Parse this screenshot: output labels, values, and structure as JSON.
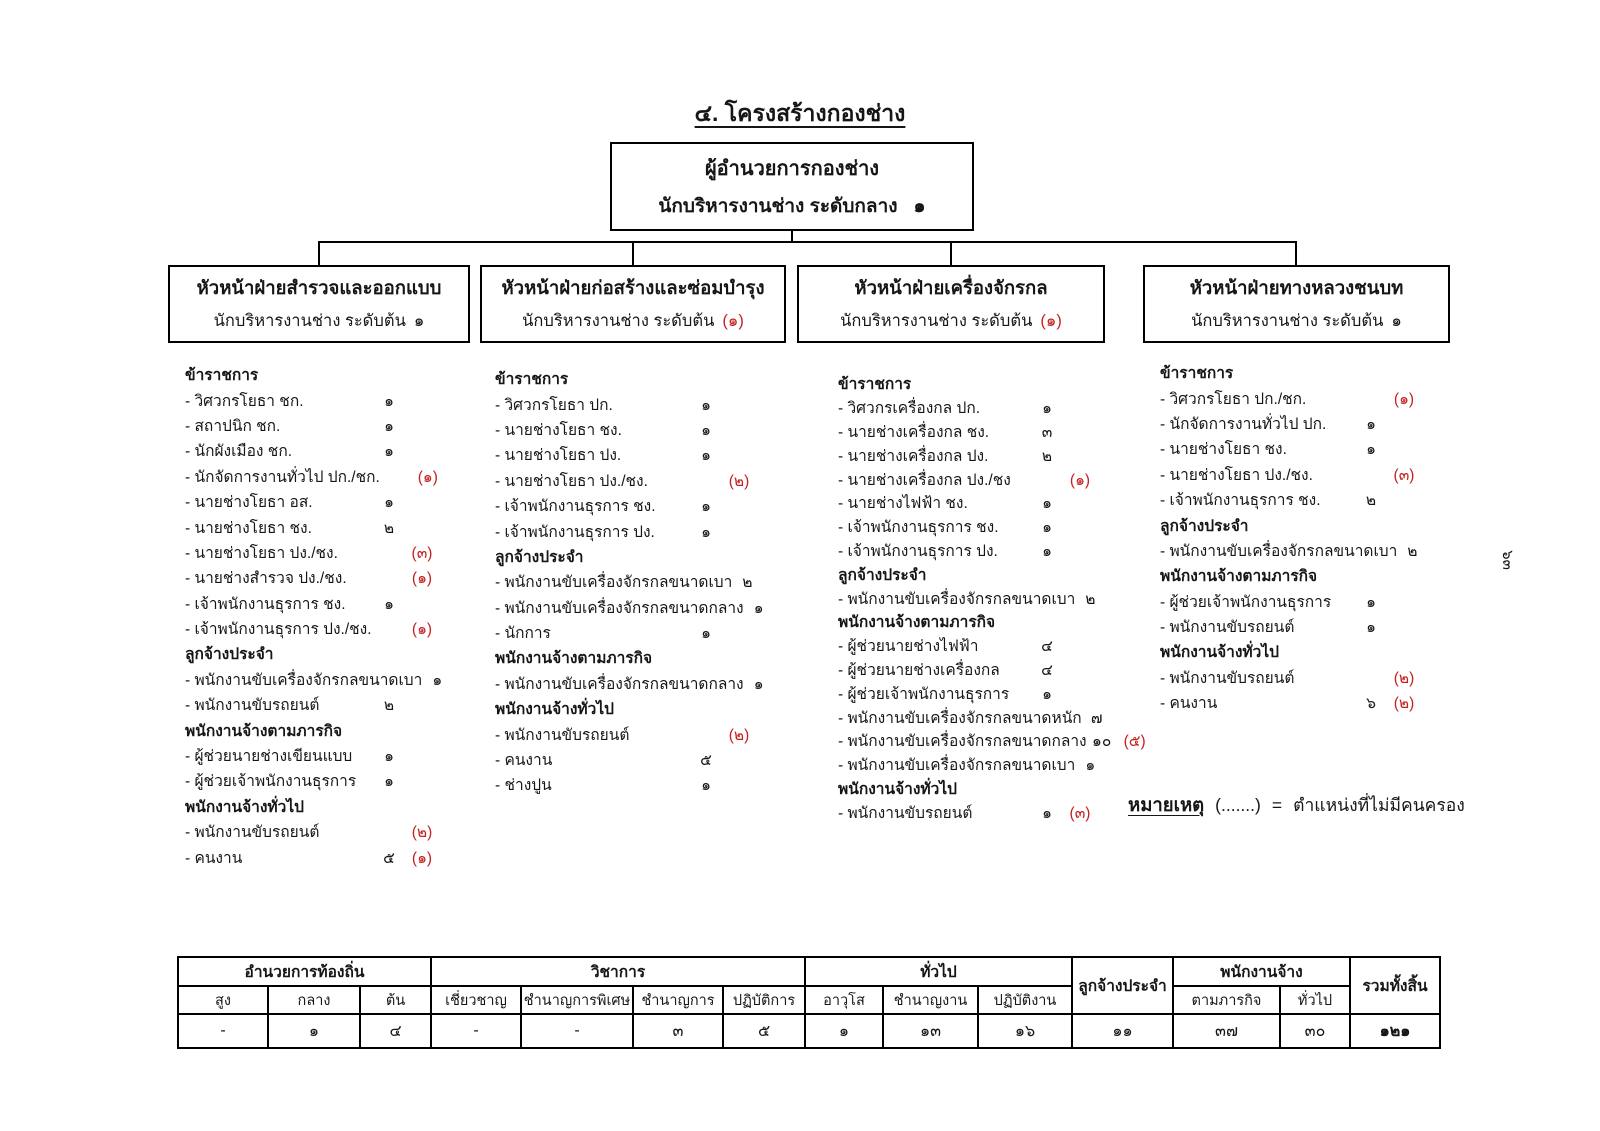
{
  "page": {
    "title": "๔. โครงสร้างกองช่าง",
    "side_page_number": "๖๓"
  },
  "colors": {
    "vacant_red": "#c32222",
    "ink": "#161616"
  },
  "director_box": {
    "title": "ผู้อำนวยการกองช่าง",
    "position": "นักบริหารงานช่าง ระดับกลาง",
    "count": "๑"
  },
  "departments": [
    {
      "title": "หัวหน้าฝ่ายสำรวจและออกแบบ",
      "position": "นักบริหารงานช่าง ระดับต้น",
      "count": "๑",
      "count_vacant": null,
      "sections": [
        {
          "header": "ข้าราชการ",
          "items": [
            {
              "label": "- วิศวกรโยธา ชก.",
              "count": "๑",
              "count_vacant": null
            },
            {
              "label": "- สถาปนิก ชก.",
              "count": "๑",
              "count_vacant": null
            },
            {
              "label": "- นักผังเมือง ชก.",
              "count": "๑",
              "count_vacant": null
            },
            {
              "label": "- นักจัดการงานทั่วไป ปก./ชก.",
              "count": null,
              "count_vacant": "(๑)"
            },
            {
              "label": "- นายช่างโยธา อส.",
              "count": "๑",
              "count_vacant": null
            },
            {
              "label": "- นายช่างโยธา ชง.",
              "count": "๒",
              "count_vacant": null
            },
            {
              "label": "- นายช่างโยธา ปง./ชง.",
              "count": null,
              "count_vacant": "(๓)"
            },
            {
              "label": "- นายช่างสำรวจ ปง./ชง.",
              "count": null,
              "count_vacant": "(๑)"
            },
            {
              "label": "- เจ้าพนักงานธุรการ ชง.",
              "count": "๑",
              "count_vacant": null
            },
            {
              "label": "- เจ้าพนักงานธุรการ ปง./ชง.",
              "count": null,
              "count_vacant": "(๑)"
            }
          ]
        },
        {
          "header": "ลูกจ้างประจำ",
          "items": [
            {
              "label": "- พนักงานขับเครื่องจักรกลขนาดเบา",
              "count": "๑",
              "count_vacant": null
            },
            {
              "label": "- พนักงานขับรถยนต์",
              "count": "๒",
              "count_vacant": null
            }
          ]
        },
        {
          "header": "พนักงานจ้างตามภารกิจ",
          "items": [
            {
              "label": "- ผู้ช่วยนายช่างเขียนแบบ",
              "count": "๑",
              "count_vacant": null
            },
            {
              "label": "- ผู้ช่วยเจ้าพนักงานธุรการ",
              "count": "๑",
              "count_vacant": null
            }
          ]
        },
        {
          "header": "พนักงานจ้างทั่วไป",
          "items": [
            {
              "label": "- พนักงานขับรถยนต์",
              "count": null,
              "count_vacant": "(๒)"
            },
            {
              "label": "- คนงาน",
              "count": "๕",
              "count_vacant": "(๑)"
            }
          ]
        }
      ]
    },
    {
      "title": "หัวหน้าฝ่ายก่อสร้างและซ่อมบำรุง",
      "position": "นักบริหารงานช่าง ระดับต้น",
      "count": null,
      "count_vacant": "(๑)",
      "sections": [
        {
          "header": "ข้าราชการ",
          "items": [
            {
              "label": "- วิศวกรโยธา ปก.",
              "count": "๑",
              "count_vacant": null
            },
            {
              "label": "- นายช่างโยธา ชง.",
              "count": "๑",
              "count_vacant": null
            },
            {
              "label": "- นายช่างโยธา ปง.",
              "count": "๑",
              "count_vacant": null
            },
            {
              "label": "- นายช่างโยธา ปง./ชง.",
              "count": null,
              "count_vacant": "(๒)"
            },
            {
              "label": "- เจ้าพนักงานธุรการ ชง.",
              "count": "๑",
              "count_vacant": null
            },
            {
              "label": "- เจ้าพนักงานธุรการ ปง.",
              "count": "๑",
              "count_vacant": null
            }
          ]
        },
        {
          "header": "ลูกจ้างประจำ",
          "items": [
            {
              "label": "- พนักงานขับเครื่องจักรกลขนาดเบา",
              "count": "๒",
              "count_vacant": null
            },
            {
              "label": "- พนักงานขับเครื่องจักรกลขนาดกลาง",
              "count": "๑",
              "count_vacant": null
            },
            {
              "label": "- นักการ",
              "count": "๑",
              "count_vacant": null
            }
          ]
        },
        {
          "header": "พนักงานจ้างตามภารกิจ",
          "items": [
            {
              "label": "- พนักงานขับเครื่องจักรกลขนาดกลาง",
              "count": "๑",
              "count_vacant": null
            }
          ]
        },
        {
          "header": "พนักงานจ้างทั่วไป",
          "items": [
            {
              "label": "- พนักงานขับรถยนต์",
              "count": null,
              "count_vacant": "(๒)"
            },
            {
              "label": "- คนงาน",
              "count": "๕",
              "count_vacant": null
            },
            {
              "label": "- ช่างปูน",
              "count": "๑",
              "count_vacant": null
            }
          ]
        }
      ]
    },
    {
      "title": "หัวหน้าฝ่ายเครื่องจักรกล",
      "position": "นักบริหารงานช่าง ระดับต้น",
      "count": null,
      "count_vacant": "(๑)",
      "sections": [
        {
          "header": "ข้าราชการ",
          "items": [
            {
              "label": "- วิศวกรเครื่องกล ปก.",
              "count": "๑",
              "count_vacant": null
            },
            {
              "label": "- นายช่างเครื่องกล ชง.",
              "count": "๓",
              "count_vacant": null
            },
            {
              "label": "- นายช่างเครื่องกล ปง.",
              "count": "๒",
              "count_vacant": null
            },
            {
              "label": "- นายช่างเครื่องกล ปง./ชง",
              "count": null,
              "count_vacant": "(๑)"
            },
            {
              "label": "- นายช่างไฟฟ้า ชง.",
              "count": "๑",
              "count_vacant": null
            },
            {
              "label": "- เจ้าพนักงานธุรการ ชง.",
              "count": "๑",
              "count_vacant": null
            },
            {
              "label": "- เจ้าพนักงานธุรการ ปง.",
              "count": "๑",
              "count_vacant": null
            }
          ]
        },
        {
          "header": "ลูกจ้างประจำ",
          "items": [
            {
              "label": "- พนักงานขับเครื่องจักรกลขนาดเบา",
              "count": "๒",
              "count_vacant": null
            }
          ]
        },
        {
          "header": "พนักงานจ้างตามภารกิจ",
          "items": [
            {
              "label": "- ผู้ช่วยนายช่างไฟฟ้า",
              "count": "๔",
              "count_vacant": null
            },
            {
              "label": "- ผู้ช่วยนายช่างเครื่องกล",
              "count": "๔",
              "count_vacant": null
            },
            {
              "label": "- ผู้ช่วยเจ้าพนักงานธุรการ",
              "count": "๑",
              "count_vacant": null
            },
            {
              "label": "- พนักงานขับเครื่องจักรกลขนาดหนัก",
              "count": "๗",
              "count_vacant": null
            },
            {
              "label": "- พนักงานขับเครื่องจักรกลขนาดกลาง",
              "count": "๑๐",
              "count_vacant": "(๕)"
            },
            {
              "label": "- พนักงานขับเครื่องจักรกลขนาดเบา",
              "count": "๑",
              "count_vacant": null
            }
          ]
        },
        {
          "header": "พนักงานจ้างทั่วไป",
          "items": [
            {
              "label": "- พนักงานขับรถยนต์",
              "count": "๑",
              "count_vacant": "(๓)"
            }
          ]
        }
      ]
    },
    {
      "title": "หัวหน้าฝ่ายทางหลวงชนบท",
      "position": "นักบริหารงานช่าง ระดับต้น",
      "count": "๑",
      "count_vacant": null,
      "sections": [
        {
          "header": "ข้าราชการ",
          "items": [
            {
              "label": "- วิศวกรโยธา ปก./ชก.",
              "count": null,
              "count_vacant": "(๑)"
            },
            {
              "label": "- นักจัดการงานทั่วไป ปก.",
              "count": "๑",
              "count_vacant": null
            },
            {
              "label": "- นายช่างโยธา ชง.",
              "count": "๑",
              "count_vacant": null
            },
            {
              "label": "- นายช่างโยธา ปง./ชง.",
              "count": null,
              "count_vacant": "(๓)"
            },
            {
              "label": "- เจ้าพนักงานธุรการ ชง.",
              "count": "๒",
              "count_vacant": null
            }
          ]
        },
        {
          "header": "ลูกจ้างประจำ",
          "items": [
            {
              "label": "- พนักงานขับเครื่องจักรกลขนาดเบา",
              "count": "๒",
              "count_vacant": null
            }
          ]
        },
        {
          "header": "พนักงานจ้างตามภารกิจ",
          "items": [
            {
              "label": "- ผู้ช่วยเจ้าพนักงานธุรการ",
              "count": "๑",
              "count_vacant": null
            },
            {
              "label": "- พนักงานขับรถยนต์",
              "count": "๑",
              "count_vacant": null
            }
          ]
        },
        {
          "header": "พนักงานจ้างทั่วไป",
          "items": [
            {
              "label": "- พนักงานขับรถยนต์",
              "count": null,
              "count_vacant": "(๒)"
            },
            {
              "label": "- คนงาน",
              "count": "๖",
              "count_vacant": "(๒)"
            }
          ]
        }
      ]
    }
  ],
  "note": {
    "keyword": "หมายเหตุ",
    "symbol": "(.......)",
    "equals": "=",
    "text": "ตำแหน่งที่ไม่มีคนครอง"
  },
  "summary_table": {
    "groups": [
      {
        "label": "อำนวยการท้องถิ่น",
        "columns": [
          "สูง",
          "กลาง",
          "ต้น"
        ]
      },
      {
        "label": "วิชาการ",
        "columns": [
          "เชี่ยวชาญ",
          "ชำนาญการพิเศษ",
          "ชำนาญการ",
          "ปฏิบัติการ"
        ]
      },
      {
        "label": "ทั่วไป",
        "columns": [
          "อาวุโส",
          "ชำนาญงาน",
          "ปฏิบัติงาน"
        ]
      },
      {
        "label": "ลูกจ้างประจำ",
        "columns": []
      },
      {
        "label": "พนักงานจ้าง",
        "columns": [
          "ตามภารกิจ",
          "ทั่วไป"
        ]
      },
      {
        "label": "รวมทั้งสิ้น",
        "columns": []
      }
    ],
    "values": [
      "-",
      "๑",
      "๔",
      "-",
      "-",
      "๓",
      "๕",
      "๑",
      "๑๓",
      "๑๖",
      "๑๑",
      "๓๗",
      "๓๐",
      "๑๒๑"
    ]
  }
}
